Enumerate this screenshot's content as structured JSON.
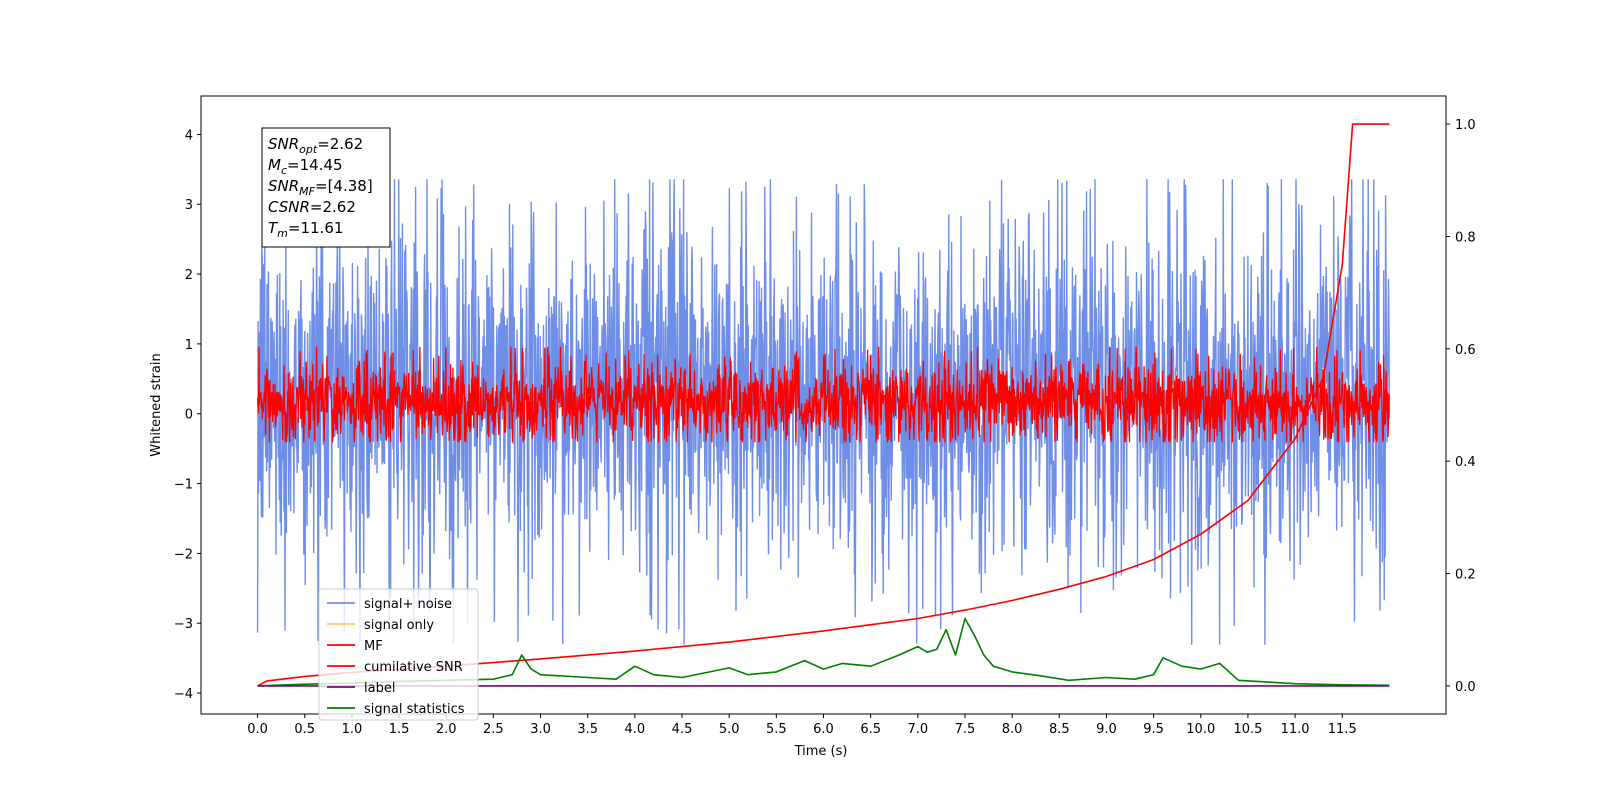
{
  "chart_data": {
    "type": "line",
    "title": "",
    "xlabel": "Time (s)",
    "ylabel": "Whitened strain",
    "xlim": [
      -0.6,
      12.6
    ],
    "ylim": [
      -4.3,
      4.55
    ],
    "y2lim": [
      -0.05,
      1.05
    ],
    "grid": false,
    "legend_placement": "lower-left",
    "x_ticks": [
      "0.0",
      "0.5",
      "1.0",
      "1.5",
      "2.0",
      "2.5",
      "3.0",
      "3.5",
      "4.0",
      "4.5",
      "5.0",
      "5.5",
      "6.0",
      "6.5",
      "7.0",
      "7.5",
      "8.0",
      "8.5",
      "9.0",
      "9.5",
      "10.0",
      "10.5",
      "11.0",
      "11.5"
    ],
    "y_ticks": [
      "4",
      "3",
      "2",
      "1",
      "0",
      "−1",
      "−2",
      "−3",
      "−4"
    ],
    "y2_ticks": [
      "1.0",
      "0.8",
      "0.6",
      "0.4",
      "0.2",
      "0.0"
    ],
    "stats_box": [
      {
        "base": "SNR",
        "sub": "opt",
        "value": "=2.62"
      },
      {
        "base": "M",
        "sub": "c",
        "value": "=14.45"
      },
      {
        "base": "SNR",
        "sub": "MF",
        "value": "=[4.38]"
      },
      {
        "base": "CSNR",
        "sub": "",
        "value": "=2.62"
      },
      {
        "base": "T",
        "sub": "m",
        "value": "=11.61"
      }
    ],
    "series": [
      {
        "name": "signal+ noise",
        "axis": "left",
        "color": "#6f8ee8",
        "style": "noisy",
        "center": 0.0,
        "envelope": [
          -2.0,
          2.6
        ],
        "extremes": [
          -3.3,
          3.35
        ]
      },
      {
        "name": "signal only",
        "axis": "left",
        "color": "#f5c87a",
        "style": "hidden"
      },
      {
        "name": "MF",
        "axis": "left",
        "color": "#ff0000",
        "style": "noisy",
        "center": 0.0,
        "envelope": [
          -0.38,
          0.7
        ],
        "extremes": [
          -0.4,
          0.95
        ]
      },
      {
        "name": "cumilative SNR",
        "axis": "right",
        "color": "#ff0000",
        "style": "line",
        "x": [
          0.0,
          0.1,
          0.5,
          1.0,
          2.0,
          3.0,
          4.0,
          5.0,
          6.0,
          7.0,
          7.5,
          8.0,
          8.5,
          9.0,
          9.5,
          10.0,
          10.5,
          11.0,
          11.3,
          11.5,
          11.61,
          12.0
        ],
        "y": [
          0.0,
          0.009,
          0.017,
          0.024,
          0.035,
          0.048,
          0.062,
          0.078,
          0.098,
          0.12,
          0.135,
          0.152,
          0.172,
          0.195,
          0.225,
          0.27,
          0.33,
          0.44,
          0.55,
          0.75,
          1.0,
          1.0
        ]
      },
      {
        "name": "label",
        "axis": "right",
        "color": "#800080",
        "style": "line",
        "x": [
          0.0,
          12.0
        ],
        "y": [
          0.0,
          0.0
        ]
      },
      {
        "name": "signal statistics",
        "axis": "right",
        "color": "#008000",
        "style": "line",
        "x": [
          0.0,
          0.5,
          1.0,
          1.5,
          2.0,
          2.5,
          2.7,
          2.8,
          2.9,
          3.0,
          3.5,
          3.8,
          4.0,
          4.2,
          4.5,
          5.0,
          5.2,
          5.5,
          5.8,
          6.0,
          6.2,
          6.5,
          6.8,
          7.0,
          7.1,
          7.2,
          7.3,
          7.4,
          7.5,
          7.6,
          7.7,
          7.8,
          8.0,
          8.3,
          8.6,
          9.0,
          9.3,
          9.5,
          9.6,
          9.8,
          10.0,
          10.2,
          10.4,
          10.6,
          11.0,
          11.5,
          12.0
        ],
        "y": [
          0.0,
          0.003,
          0.005,
          0.008,
          0.01,
          0.012,
          0.02,
          0.055,
          0.03,
          0.02,
          0.015,
          0.012,
          0.035,
          0.02,
          0.015,
          0.032,
          0.02,
          0.025,
          0.045,
          0.03,
          0.04,
          0.035,
          0.055,
          0.07,
          0.06,
          0.065,
          0.1,
          0.055,
          0.12,
          0.09,
          0.055,
          0.035,
          0.025,
          0.018,
          0.01,
          0.015,
          0.012,
          0.02,
          0.05,
          0.035,
          0.03,
          0.04,
          0.01,
          0.008,
          0.004,
          0.002,
          0.001
        ]
      }
    ]
  }
}
